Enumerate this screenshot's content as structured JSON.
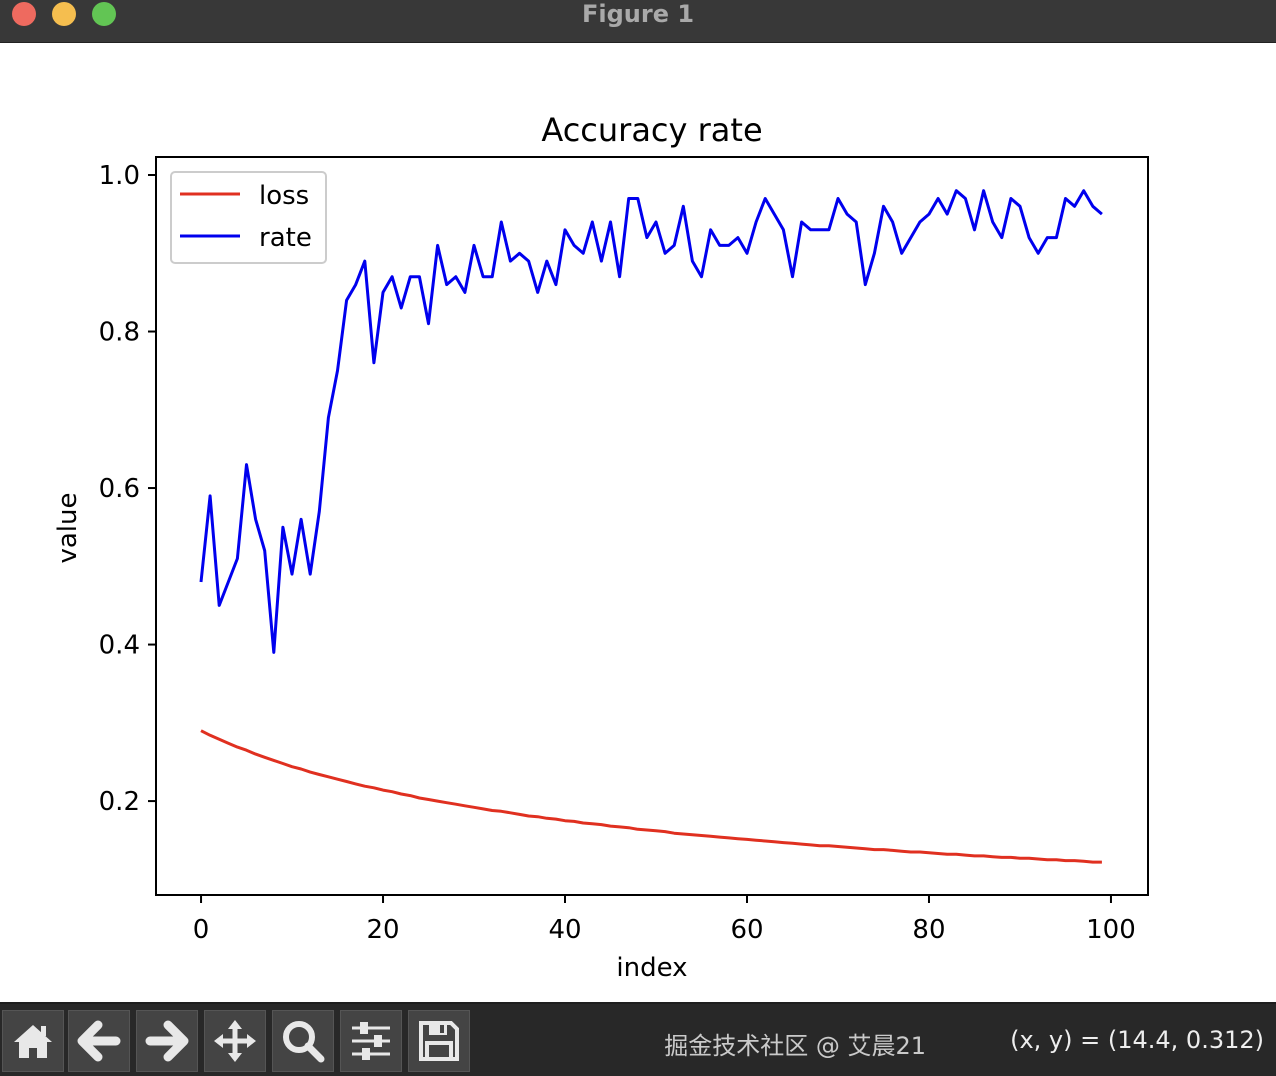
{
  "window": {
    "title": "Figure 1",
    "traffic_lights": {
      "close": "#ee6a5f",
      "minimize": "#f5be4f",
      "zoom": "#62c554"
    }
  },
  "toolbar": {
    "buttons": [
      {
        "icon": "home-icon",
        "label": "Home"
      },
      {
        "icon": "back-arrow-icon",
        "label": "Back"
      },
      {
        "icon": "forward-arrow-icon",
        "label": "Forward"
      },
      {
        "icon": "pan-move-icon",
        "label": "Pan"
      },
      {
        "icon": "zoom-magnifier-icon",
        "label": "Zoom"
      },
      {
        "icon": "configure-subplots-icon",
        "label": "Subplots"
      },
      {
        "icon": "save-floppy-icon",
        "label": "Save"
      }
    ],
    "coordinate_readout": "(x, y) = (14.4, 0.312)",
    "watermark": "掘金技术社区 @ 艾晨21"
  },
  "chart_data": {
    "type": "line",
    "title": "Accuracy rate",
    "xlabel": "index",
    "ylabel": "value",
    "xlim": [
      -4.95,
      104.07
    ],
    "ylim": [
      0.08,
      1.023
    ],
    "xticks": [
      0,
      20,
      40,
      60,
      80,
      100
    ],
    "xtick_labels": [
      "0",
      "20",
      "40",
      "60",
      "80",
      "100"
    ],
    "yticks": [
      0.2,
      0.4,
      0.6,
      0.8,
      1.0
    ],
    "ytick_labels": [
      "0.2",
      "0.4",
      "0.6",
      "0.8",
      "1.0"
    ],
    "grid": false,
    "legend": "top-left",
    "x": [
      0,
      1,
      2,
      3,
      4,
      5,
      6,
      7,
      8,
      9,
      10,
      11,
      12,
      13,
      14,
      15,
      16,
      17,
      18,
      19,
      20,
      21,
      22,
      23,
      24,
      25,
      26,
      27,
      28,
      29,
      30,
      31,
      32,
      33,
      34,
      35,
      36,
      37,
      38,
      39,
      40,
      41,
      42,
      43,
      44,
      45,
      46,
      47,
      48,
      49,
      50,
      51,
      52,
      53,
      54,
      55,
      56,
      57,
      58,
      59,
      60,
      61,
      62,
      63,
      64,
      65,
      66,
      67,
      68,
      69,
      70,
      71,
      72,
      73,
      74,
      75,
      76,
      77,
      78,
      79,
      80,
      81,
      82,
      83,
      84,
      85,
      86,
      87,
      88,
      89,
      90,
      91,
      92,
      93,
      94,
      95,
      96,
      97,
      98,
      99
    ],
    "series": [
      {
        "name": "loss",
        "color": "#e03020",
        "values": [
          0.29,
          0.284,
          0.279,
          0.274,
          0.269,
          0.265,
          0.26,
          0.256,
          0.252,
          0.248,
          0.244,
          0.241,
          0.237,
          0.234,
          0.231,
          0.228,
          0.225,
          0.222,
          0.219,
          0.217,
          0.214,
          0.212,
          0.209,
          0.207,
          0.204,
          0.202,
          0.2,
          0.198,
          0.196,
          0.194,
          0.192,
          0.19,
          0.188,
          0.187,
          0.185,
          0.183,
          0.181,
          0.18,
          0.178,
          0.177,
          0.175,
          0.174,
          0.172,
          0.171,
          0.17,
          0.168,
          0.167,
          0.166,
          0.164,
          0.163,
          0.162,
          0.161,
          0.159,
          0.158,
          0.157,
          0.156,
          0.155,
          0.154,
          0.153,
          0.152,
          0.151,
          0.15,
          0.149,
          0.148,
          0.147,
          0.146,
          0.145,
          0.144,
          0.143,
          0.143,
          0.142,
          0.141,
          0.14,
          0.139,
          0.138,
          0.138,
          0.137,
          0.136,
          0.135,
          0.135,
          0.134,
          0.133,
          0.132,
          0.132,
          0.131,
          0.13,
          0.13,
          0.129,
          0.128,
          0.128,
          0.127,
          0.127,
          0.126,
          0.125,
          0.125,
          0.124,
          0.124,
          0.123,
          0.122,
          0.122
        ]
      },
      {
        "name": "rate",
        "color": "#0000ee",
        "values": [
          0.48,
          0.59,
          0.45,
          0.48,
          0.51,
          0.63,
          0.56,
          0.52,
          0.39,
          0.55,
          0.49,
          0.56,
          0.49,
          0.57,
          0.69,
          0.75,
          0.84,
          0.86,
          0.89,
          0.76,
          0.85,
          0.87,
          0.83,
          0.87,
          0.87,
          0.81,
          0.91,
          0.86,
          0.87,
          0.85,
          0.91,
          0.87,
          0.87,
          0.94,
          0.89,
          0.9,
          0.89,
          0.85,
          0.89,
          0.86,
          0.93,
          0.91,
          0.9,
          0.94,
          0.89,
          0.94,
          0.87,
          0.97,
          0.97,
          0.92,
          0.94,
          0.9,
          0.91,
          0.96,
          0.89,
          0.87,
          0.93,
          0.91,
          0.91,
          0.92,
          0.9,
          0.94,
          0.97,
          0.95,
          0.93,
          0.87,
          0.94,
          0.93,
          0.93,
          0.93,
          0.97,
          0.95,
          0.94,
          0.86,
          0.9,
          0.96,
          0.94,
          0.9,
          0.92,
          0.94,
          0.95,
          0.97,
          0.95,
          0.98,
          0.97,
          0.93,
          0.98,
          0.94,
          0.92,
          0.97,
          0.96,
          0.92,
          0.9,
          0.92,
          0.92,
          0.97,
          0.96,
          0.98,
          0.96,
          0.95
        ]
      }
    ]
  }
}
